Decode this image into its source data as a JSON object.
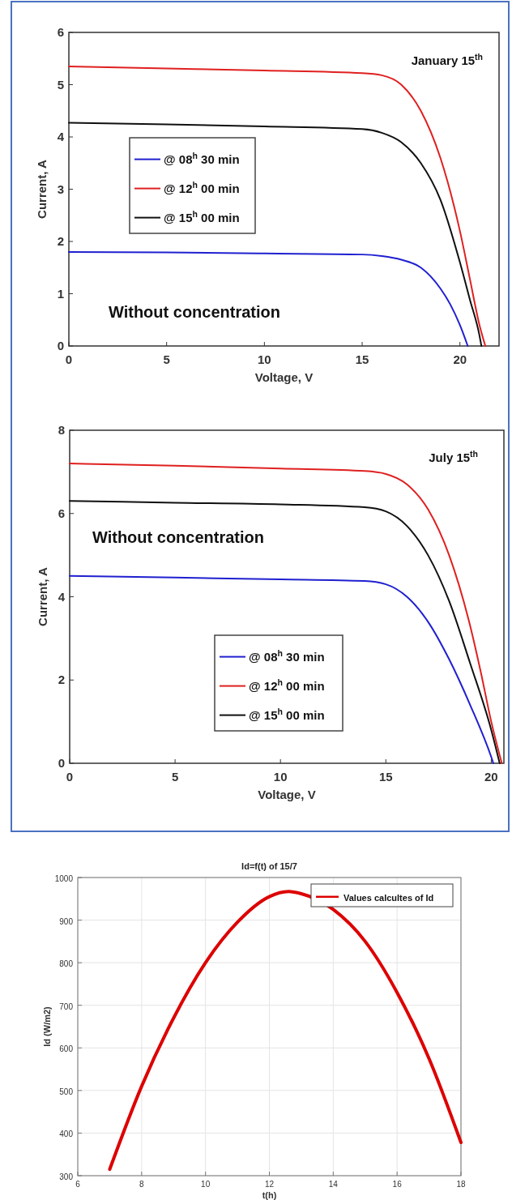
{
  "chart_data": [
    {
      "type": "line",
      "xlabel": "Voltage, V",
      "ylabel": "Current, A",
      "xlim": [
        0,
        22
      ],
      "xticks": [
        0,
        5,
        10,
        15,
        20
      ],
      "ylim": [
        0,
        6
      ],
      "yticks": [
        0,
        1,
        2,
        3,
        4,
        5,
        6
      ],
      "legend": "left",
      "annotations": [
        "January 15$^{th}$",
        "Without concentration"
      ],
      "series": [
        {
          "name": "@ 08$^{h}$ 30 min",
          "color": "#2020d0",
          "x": [
            0,
            5,
            10,
            15,
            16,
            17,
            18,
            19,
            19.5,
            20,
            20.4
          ],
          "values": [
            1.8,
            1.79,
            1.77,
            1.75,
            1.72,
            1.65,
            1.5,
            1.1,
            0.8,
            0.4,
            0
          ]
        },
        {
          "name": "@ 12$^{h}$ 00 min",
          "color": "#e02020",
          "x": [
            0,
            5,
            10,
            15,
            16,
            17,
            18,
            19,
            20,
            20.5,
            21,
            21.3
          ],
          "values": [
            5.35,
            5.31,
            5.27,
            5.22,
            5.18,
            5.0,
            4.5,
            3.6,
            2.2,
            1.3,
            0.4,
            0
          ]
        },
        {
          "name": "@ 15$^{h}$ 00 min",
          "color": "#101010",
          "x": [
            0,
            5,
            10,
            15,
            16,
            17,
            18,
            19,
            20,
            20.5,
            21,
            21.1
          ],
          "values": [
            4.27,
            4.24,
            4.2,
            4.15,
            4.08,
            3.9,
            3.5,
            2.8,
            1.6,
            0.9,
            0.2,
            0
          ]
        }
      ]
    },
    {
      "type": "line",
      "xlabel": "Voltage, V",
      "ylabel": "Current, A",
      "xlim": [
        0,
        20.6
      ],
      "xticks": [
        0,
        5,
        10,
        15,
        20
      ],
      "ylim": [
        0,
        8
      ],
      "yticks": [
        0,
        2,
        4,
        6,
        8
      ],
      "legend": "bottom",
      "annotations": [
        "July 15$^{th}$",
        "Without concentration"
      ],
      "series": [
        {
          "name": "@ 08$^{h}$ 30 min",
          "color": "#2020d0",
          "x": [
            0,
            5,
            10,
            14,
            15,
            16,
            17,
            18,
            19,
            20,
            20.1
          ],
          "values": [
            4.5,
            4.46,
            4.42,
            4.38,
            4.3,
            4.0,
            3.4,
            2.5,
            1.4,
            0.15,
            0
          ]
        },
        {
          "name": "@ 12$^{h}$ 00 min",
          "color": "#e02020",
          "x": [
            0,
            5,
            10,
            14,
            15,
            16,
            17,
            18,
            19,
            19.5,
            20,
            20.5
          ],
          "values": [
            7.2,
            7.15,
            7.08,
            7.02,
            6.95,
            6.7,
            6.1,
            5.0,
            3.3,
            2.2,
            1.0,
            0
          ]
        },
        {
          "name": "@ 15$^{h}$ 00 min",
          "color": "#101010",
          "x": [
            0,
            5,
            10,
            14,
            15,
            16,
            17,
            18,
            19,
            20,
            20.4
          ],
          "values": [
            6.3,
            6.26,
            6.22,
            6.15,
            6.05,
            5.7,
            5.0,
            3.9,
            2.4,
            0.8,
            0
          ]
        }
      ]
    },
    {
      "type": "line",
      "title": "Id=f(t) of 15/7",
      "xlabel": "t(h)",
      "ylabel": "Id (W/m2)",
      "xlim": [
        6,
        18
      ],
      "xticks": [
        6,
        8,
        10,
        12,
        14,
        16,
        18
      ],
      "ylim": [
        300,
        1000
      ],
      "yticks": [
        300,
        400,
        500,
        600,
        700,
        800,
        900,
        1000
      ],
      "grid": true,
      "legend": "top right",
      "series": [
        {
          "name": "Values calcultes of Id",
          "color": "#dd0000",
          "x": [
            7,
            8,
            9,
            10,
            11,
            12,
            12.6,
            13,
            14,
            15,
            16,
            17,
            18
          ],
          "values": [
            315,
            510,
            670,
            800,
            895,
            955,
            967,
            962,
            925,
            850,
            730,
            575,
            378
          ]
        }
      ]
    }
  ]
}
